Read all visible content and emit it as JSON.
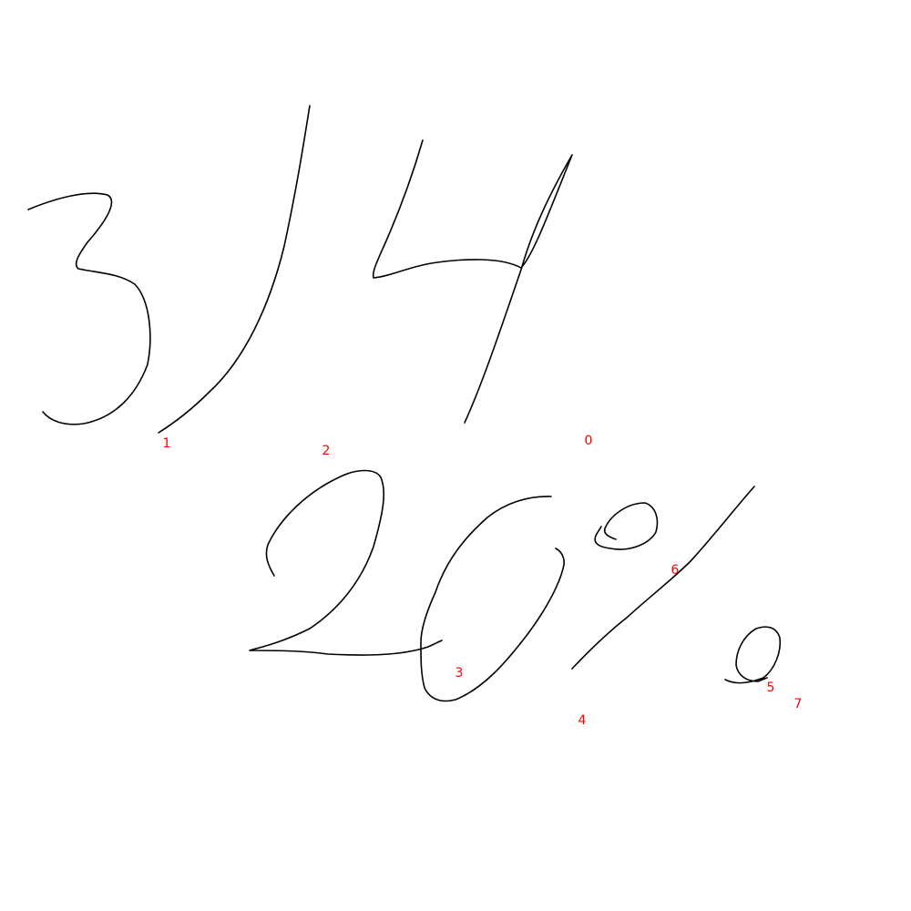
{
  "colors": {
    "background": "#ffffff",
    "ink": "#000000",
    "label": "#ff0000"
  },
  "strokes": [
    {
      "id": "stroke-0",
      "label": "0",
      "glyph": "7"
    },
    {
      "id": "stroke-1",
      "label": "1",
      "glyph": "3"
    },
    {
      "id": "stroke-2",
      "label": "2",
      "glyph": "slash"
    },
    {
      "id": "stroke-3",
      "label": "3",
      "glyph": "2"
    },
    {
      "id": "stroke-4",
      "label": "4",
      "glyph": "0"
    },
    {
      "id": "stroke-5",
      "label": "5",
      "glyph": "percent-lower-circle"
    },
    {
      "id": "stroke-6",
      "label": "6",
      "glyph": "percent-upper-circle"
    },
    {
      "id": "stroke-7",
      "label": "7",
      "glyph": "percent-slash"
    }
  ]
}
